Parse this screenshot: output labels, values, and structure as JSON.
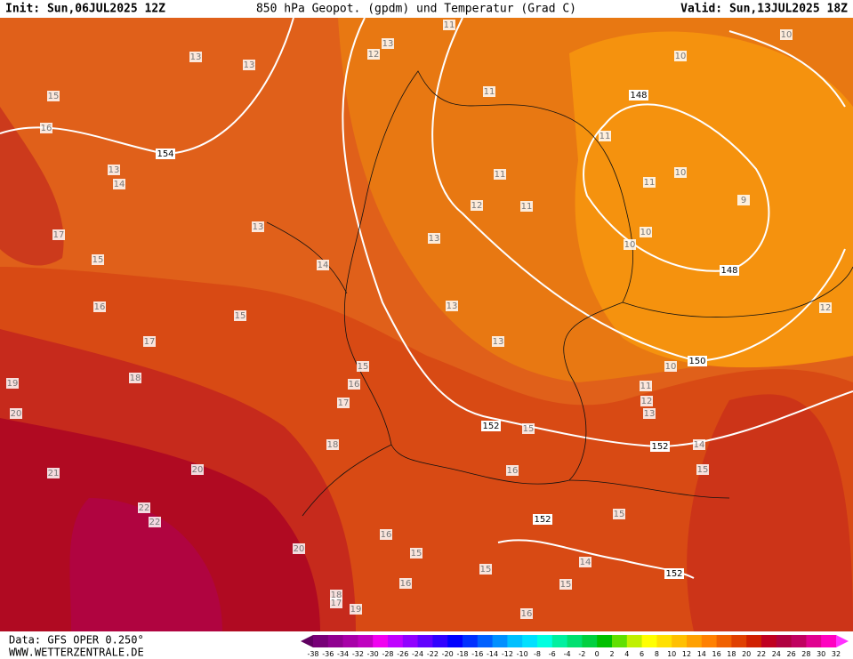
{
  "header": {
    "init": "Init: Sun,06JUL2025 12Z",
    "title": "850 hPa Geopot. (gpdm) und Temperatur (Grad C)",
    "valid": "Valid: Sun,13JUL2025 18Z"
  },
  "footer": {
    "data": "Data: GFS OPER 0.250°",
    "site": "WWW.WETTERZENTRALE.DE"
  },
  "map": {
    "temperature_labels": [
      13,
      13,
      12,
      13,
      11,
      11,
      15,
      16,
      13,
      14,
      17,
      15,
      13,
      14,
      12,
      11,
      11,
      13,
      11,
      11,
      10,
      10,
      9,
      10,
      10,
      12,
      16,
      17,
      18,
      19,
      20,
      15,
      13,
      13,
      15,
      16,
      17,
      18,
      20,
      21,
      22,
      22,
      20,
      10,
      11,
      12,
      13,
      14,
      15,
      16,
      15,
      15,
      14,
      16,
      15,
      15,
      16,
      15,
      18,
      17,
      19,
      16,
      10
    ],
    "geopotential_labels": [
      154,
      148,
      148,
      150,
      152,
      152,
      152,
      152
    ]
  },
  "colorbar": {
    "ticks": [
      -38,
      -36,
      -34,
      -32,
      -30,
      -28,
      -26,
      -24,
      -22,
      -20,
      -18,
      -16,
      -14,
      -12,
      -10,
      -8,
      -6,
      -4,
      -2,
      0,
      2,
      4,
      6,
      8,
      10,
      12,
      14,
      16,
      18,
      20,
      22,
      24,
      26,
      28,
      30,
      32
    ],
    "colors": [
      "#600060",
      "#780078",
      "#900090",
      "#a800a8",
      "#c000c0",
      "#f000f0",
      "#c000ff",
      "#9000ff",
      "#6000ff",
      "#3000ff",
      "#0000ff",
      "#0030ff",
      "#0060ff",
      "#0090ff",
      "#00c0ff",
      "#00e0ff",
      "#00ffe0",
      "#00f0a0",
      "#00e070",
      "#00d040",
      "#00c000",
      "#60e000",
      "#c0f000",
      "#ffff00",
      "#ffe000",
      "#ffc000",
      "#ffa000",
      "#ff8000",
      "#f06000",
      "#e04000",
      "#d02000",
      "#c00020",
      "#b00040",
      "#c00060",
      "#e00090",
      "#ff00c0",
      "#ff30ff"
    ]
  }
}
